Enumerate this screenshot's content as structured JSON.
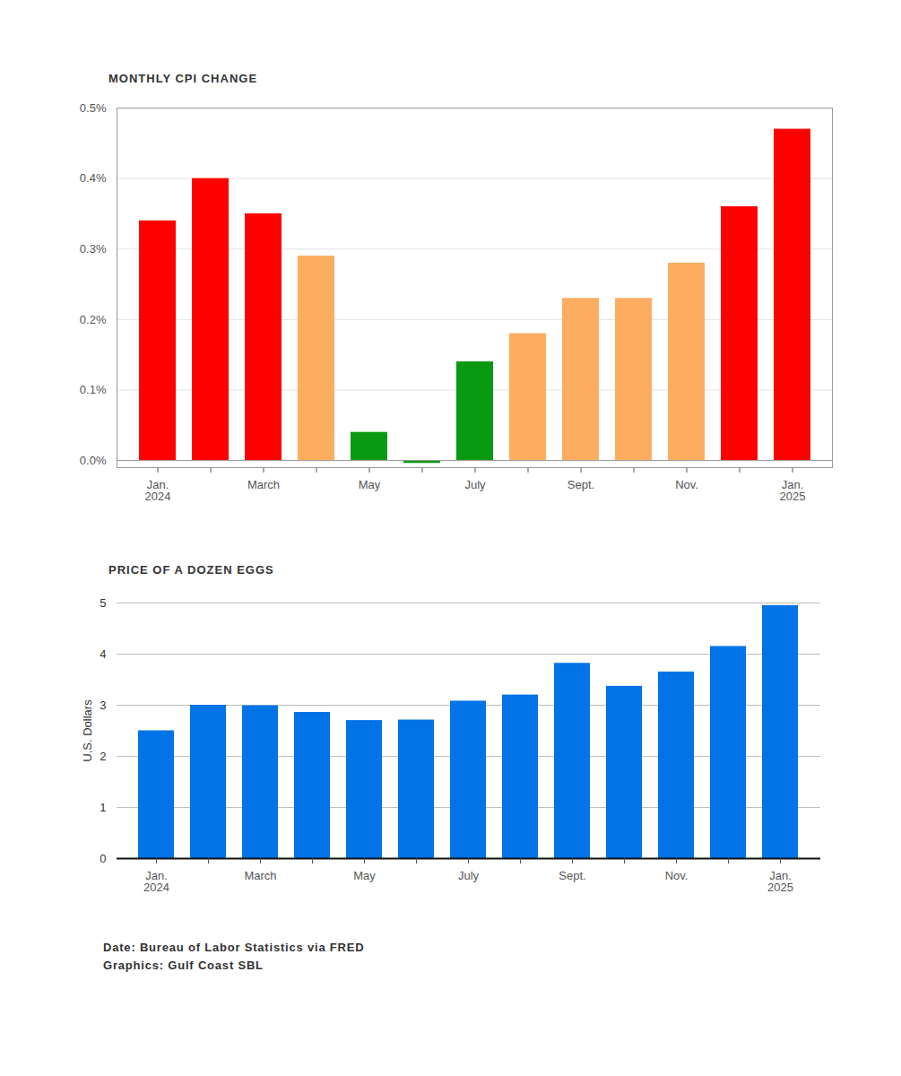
{
  "chart_data": [
    {
      "type": "bar",
      "title": "MONTHLY CPI CHANGE",
      "categories": [
        "Jan.\n2024",
        null,
        "March",
        null,
        "May",
        null,
        "July",
        null,
        "Sept.",
        null,
        "Nov.",
        null,
        "Jan.\n2025"
      ],
      "values": [
        0.34,
        0.4,
        0.35,
        0.29,
        0.04,
        -0.004,
        0.14,
        0.18,
        0.23,
        0.23,
        0.28,
        0.36,
        0.47
      ],
      "colors": [
        "#ff0000",
        "#ff0000",
        "#ff0000",
        "#fdad60",
        "#0a9a12",
        "#0a9a12",
        "#0a9a12",
        "#fdad60",
        "#fdad60",
        "#fdad60",
        "#fdad60",
        "#ff0000",
        "#ff0000"
      ],
      "ylim": [
        -0.01,
        0.5
      ],
      "yticks": [
        {
          "value": 0,
          "label": "0.0%"
        },
        {
          "value": 0.1,
          "label": "0.1%"
        },
        {
          "value": 0.2,
          "label": "0.2%"
        },
        {
          "value": 0.3,
          "label": "0.3%"
        },
        {
          "value": 0.4,
          "label": "0.4%"
        },
        {
          "value": 0.5,
          "label": "0.5%"
        }
      ],
      "grid": true
    },
    {
      "type": "bar",
      "title": "PRICE OF A DOZEN EGGS",
      "categories": [
        "Jan.\n2024",
        null,
        "March",
        null,
        "May",
        null,
        "July",
        null,
        "Sept.",
        null,
        "Nov.",
        null,
        "Jan.\n2025"
      ],
      "values": [
        2.5,
        3.0,
        2.99,
        2.86,
        2.7,
        2.71,
        3.08,
        3.2,
        3.82,
        3.37,
        3.65,
        4.15,
        4.95
      ],
      "color": "#0073e6",
      "ylabel": "U.S. Dollars",
      "ylim": [
        0,
        5
      ],
      "yticks": [
        0,
        1,
        2,
        3,
        4,
        5
      ],
      "grid": true,
      "annotations": [
        "Date: Bureau of Labor Statistics via FRED",
        "Graphics: Gulf Coast SBL"
      ]
    }
  ]
}
